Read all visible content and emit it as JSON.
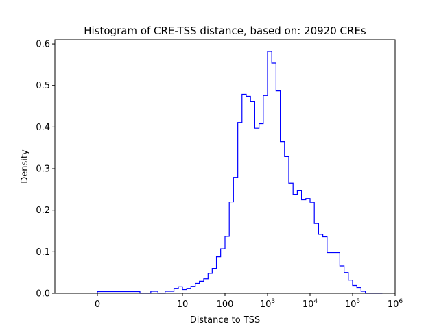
{
  "chart_data": {
    "type": "bar",
    "style": "step-histogram",
    "title": "Histogram of CRE-TSS distance, based on: 20920 CREs",
    "xlabel": "Distance to TSS",
    "ylabel": "Density",
    "xscale": "symlog",
    "xlim": [
      -1,
      1000000
    ],
    "ylim": [
      0,
      0.61
    ],
    "x_ticks": [
      {
        "value": 0,
        "label": "0",
        "sup": ""
      },
      {
        "value": 10,
        "label": "10",
        "sup": ""
      },
      {
        "value": 100,
        "label": "100",
        "sup": ""
      },
      {
        "value": 1000,
        "label": "10",
        "sup": "3"
      },
      {
        "value": 10000,
        "label": "10",
        "sup": "4"
      },
      {
        "value": 100000,
        "label": "10",
        "sup": "5"
      },
      {
        "value": 1000000,
        "label": "10",
        "sup": "6"
      }
    ],
    "y_ticks": [
      {
        "value": 0,
        "label": "0.0"
      },
      {
        "value": 0.1,
        "label": "0.1"
      },
      {
        "value": 0.2,
        "label": "0.2"
      },
      {
        "value": 0.3,
        "label": "0.3"
      },
      {
        "value": 0.4,
        "label": "0.4"
      },
      {
        "value": 0.5,
        "label": "0.5"
      },
      {
        "value": 0.6,
        "label": "0.6"
      }
    ],
    "color": "#0000ff",
    "grid": false,
    "series": [
      {
        "bin_edges": [
          0,
          1,
          1.8,
          2.65,
          3.9,
          5,
          6.3,
          8,
          10,
          12.6,
          15.8,
          20,
          25,
          31.6,
          40,
          50,
          63,
          79,
          100,
          126,
          158,
          200,
          251,
          316,
          398,
          501,
          631,
          794,
          1000,
          1259,
          1585,
          1995,
          2512,
          3162,
          3981,
          5012,
          6310,
          7943,
          10000,
          12589,
          15849,
          19953,
          25119,
          31623,
          39811,
          50119,
          63096,
          79433,
          100000,
          125893,
          158489,
          199526,
          251189,
          316228,
          398107,
          501187
        ],
        "values": [
          0.004,
          0,
          0.005,
          0,
          0.005,
          0.005,
          0.012,
          0.016,
          0.009,
          0.012,
          0.017,
          0.024,
          0.029,
          0.035,
          0.048,
          0.06,
          0.088,
          0.107,
          0.137,
          0.22,
          0.279,
          0.411,
          0.479,
          0.474,
          0.461,
          0.397,
          0.408,
          0.476,
          0.582,
          0.554,
          0.487,
          0.365,
          0.329,
          0.265,
          0.238,
          0.248,
          0.225,
          0.228,
          0.219,
          0.168,
          0.142,
          0.136,
          0.098,
          0.098,
          0.098,
          0.066,
          0.05,
          0.032,
          0.019,
          0.014,
          0.005,
          0,
          0,
          0,
          0
        ]
      }
    ]
  }
}
